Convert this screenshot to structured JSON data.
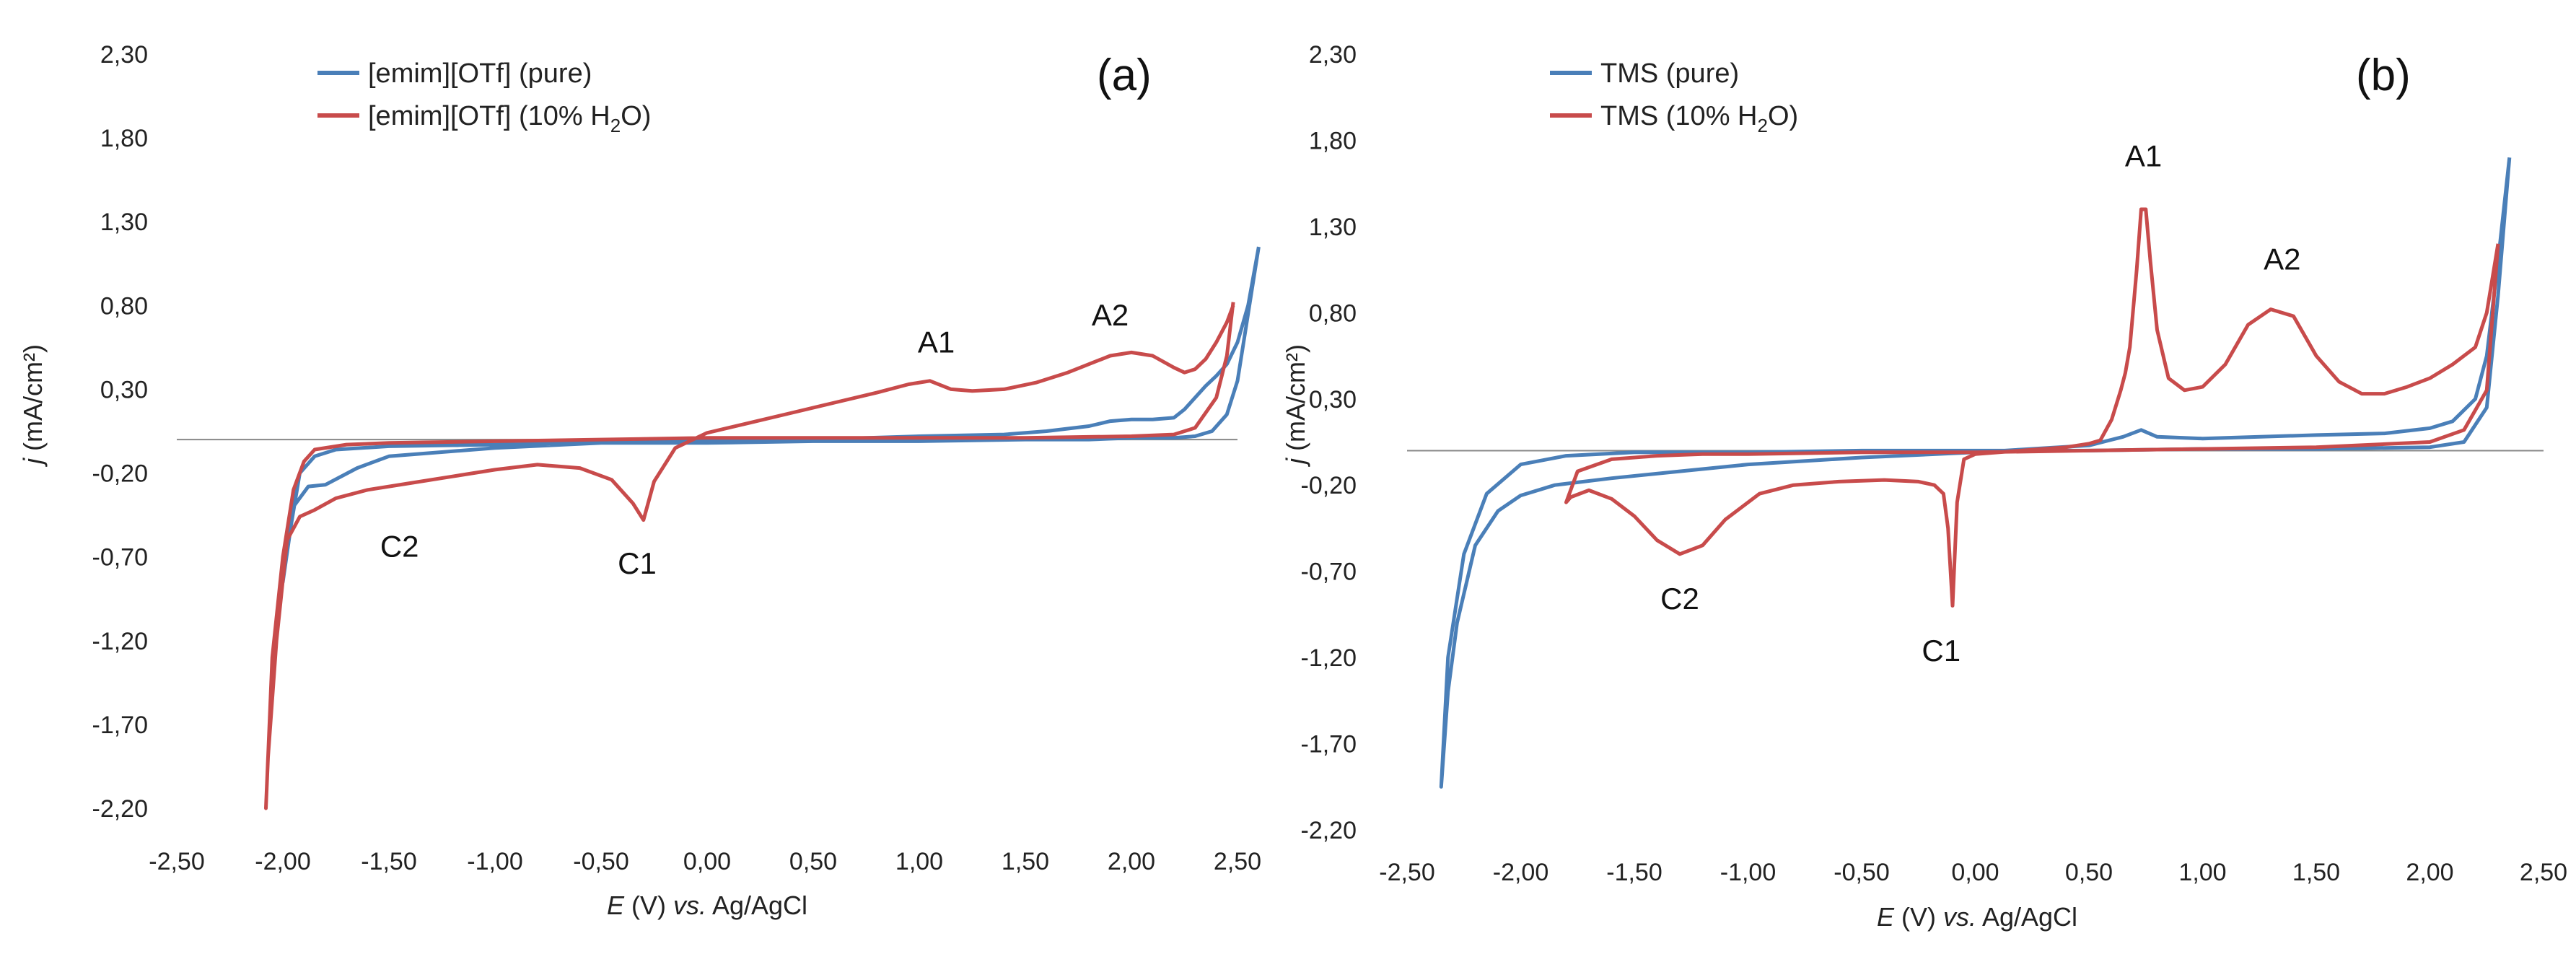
{
  "chart_data": [
    {
      "type": "line",
      "panel_label": "(a)",
      "xlabel_italic": "E",
      "xlabel_mid": " (V) ",
      "xlabel_italic2": "vs.",
      "xlabel_tail": " Ag/AgCl",
      "ylabel_italic": "j",
      "ylabel_tail": " (mA/cm²)",
      "xlim": [
        -2.5,
        2.5
      ],
      "ylim": [
        -2.2,
        2.3
      ],
      "xticks": [
        -2.5,
        -2.0,
        -1.5,
        -1.0,
        -0.5,
        0.0,
        0.5,
        1.0,
        1.5,
        2.0,
        2.5
      ],
      "xtick_labels": [
        "-2,50",
        "-2,00",
        "-1,50",
        "-1,00",
        "-0,50",
        "0,00",
        "0,50",
        "1,00",
        "1,50",
        "2,00",
        "2,50"
      ],
      "yticks": [
        2.3,
        1.8,
        1.3,
        0.8,
        0.3,
        -0.2,
        -0.7,
        -1.2,
        -1.7,
        -2.2
      ],
      "ytick_labels": [
        "2,30",
        "1,80",
        "1,30",
        "0,80",
        "0,30",
        "-0,20",
        "-0,70",
        "-1,20",
        "-1,70",
        "-2,20"
      ],
      "grid": false,
      "legend_position": "top-left",
      "series": [
        {
          "name": "[emim][OTf] (pure)",
          "legend_main": "[emim][OTf] (pure)",
          "legend_sub": "",
          "legend_tail": "",
          "color": "#4a7fb8",
          "x": [
            2.6,
            2.55,
            2.5,
            2.45,
            2.4,
            2.35,
            2.3,
            2.25,
            2.2,
            2.1,
            2.0,
            1.9,
            1.8,
            1.6,
            1.4,
            1.0,
            0.5,
            0.0,
            -0.5,
            -1.0,
            -1.5,
            -1.65,
            -1.8,
            -1.88,
            -1.95,
            -2.0,
            -1.96,
            -1.92,
            -1.85,
            -1.75,
            -1.5,
            -1.0,
            -0.5,
            0.0,
            0.5,
            1.0,
            1.5,
            1.8,
            2.0,
            2.2,
            2.3,
            2.38,
            2.45,
            2.5,
            2.55,
            2.6
          ],
          "y": [
            1.15,
            0.8,
            0.58,
            0.45,
            0.38,
            0.32,
            0.25,
            0.18,
            0.13,
            0.12,
            0.12,
            0.11,
            0.08,
            0.05,
            0.03,
            0.02,
            0.0,
            -0.01,
            -0.02,
            -0.05,
            -0.1,
            -0.17,
            -0.27,
            -0.28,
            -0.4,
            -0.85,
            -0.5,
            -0.2,
            -0.1,
            -0.06,
            -0.04,
            -0.03,
            -0.02,
            -0.02,
            -0.01,
            -0.01,
            0.0,
            0.0,
            0.01,
            0.01,
            0.02,
            0.05,
            0.15,
            0.35,
            0.75,
            1.15
          ]
        },
        {
          "name": "[emim][OTf] (10% H2O)",
          "legend_main": "[emim][OTf] (10% H",
          "legend_sub": "2",
          "legend_tail": "O)",
          "color": "#c84b4b",
          "x": [
            2.48,
            2.45,
            2.4,
            2.35,
            2.3,
            2.25,
            2.2,
            2.1,
            2.0,
            1.9,
            1.8,
            1.7,
            1.55,
            1.4,
            1.25,
            1.15,
            1.05,
            0.95,
            0.8,
            0.6,
            0.4,
            0.2,
            0.0,
            -0.15,
            -0.25,
            -0.3,
            -0.35,
            -0.45,
            -0.6,
            -0.8,
            -1.0,
            -1.2,
            -1.4,
            -1.6,
            -1.75,
            -1.85,
            -1.92,
            -1.98,
            -2.03,
            -2.07,
            -2.08,
            -2.05,
            -2.0,
            -1.95,
            -1.9,
            -1.85,
            -1.7,
            -1.5,
            -1.0,
            -0.5,
            0.0,
            0.5,
            1.0,
            1.5,
            2.0,
            2.2,
            2.3,
            2.4,
            2.45,
            2.48
          ],
          "y": [
            0.8,
            0.7,
            0.58,
            0.48,
            0.42,
            0.4,
            0.43,
            0.5,
            0.52,
            0.5,
            0.45,
            0.4,
            0.34,
            0.3,
            0.29,
            0.3,
            0.35,
            0.33,
            0.28,
            0.22,
            0.16,
            0.1,
            0.04,
            -0.05,
            -0.25,
            -0.48,
            -0.38,
            -0.24,
            -0.17,
            -0.15,
            -0.18,
            -0.22,
            -0.26,
            -0.3,
            -0.35,
            -0.42,
            -0.46,
            -0.6,
            -1.2,
            -1.9,
            -2.2,
            -1.3,
            -0.7,
            -0.3,
            -0.13,
            -0.06,
            -0.03,
            -0.02,
            -0.01,
            0.0,
            0.01,
            0.01,
            0.01,
            0.01,
            0.02,
            0.03,
            0.07,
            0.25,
            0.5,
            0.82
          ]
        }
      ],
      "annotations": [
        {
          "text": "A1",
          "x": 1.08,
          "y": 0.52
        },
        {
          "text": "A2",
          "x": 1.9,
          "y": 0.68
        },
        {
          "text": "C1",
          "x": -0.33,
          "y": -0.8
        },
        {
          "text": "C2",
          "x": -1.45,
          "y": -0.7
        }
      ]
    },
    {
      "type": "line",
      "panel_label": "(b)",
      "xlabel_italic": "E",
      "xlabel_mid": " (V) ",
      "xlabel_italic2": "vs.",
      "xlabel_tail": " Ag/AgCl",
      "ylabel_italic": "j",
      "ylabel_tail": " (mA/cm²)",
      "xlim": [
        -2.5,
        2.5
      ],
      "ylim": [
        -2.2,
        2.3
      ],
      "xticks": [
        -2.5,
        -2.0,
        -1.5,
        -1.0,
        -0.5,
        0.0,
        0.5,
        1.0,
        1.5,
        2.0,
        2.5
      ],
      "xtick_labels": [
        "-2,50",
        "-2,00",
        "-1,50",
        "-1,00",
        "-0,50",
        "0,00",
        "0,50",
        "1,00",
        "1,50",
        "2,00",
        "2,50"
      ],
      "yticks": [
        2.3,
        1.8,
        1.3,
        0.8,
        0.3,
        -0.2,
        -0.7,
        -1.2,
        -1.7,
        -2.2
      ],
      "ytick_labels": [
        "2,30",
        "1,80",
        "1,30",
        "0,80",
        "0,30",
        "-0,20",
        "-0,70",
        "-1,20",
        "-1,70",
        "-2,20"
      ],
      "grid": false,
      "legend_position": "top-left",
      "series": [
        {
          "name": "TMS (pure)",
          "legend_main": "TMS (pure)",
          "legend_sub": "",
          "legend_tail": "",
          "color": "#4a7fb8",
          "x": [
            2.35,
            2.3,
            2.25,
            2.2,
            2.1,
            2.0,
            1.8,
            1.5,
            1.0,
            0.8,
            0.73,
            0.65,
            0.5,
            0.0,
            -0.5,
            -1.0,
            -1.3,
            -1.6,
            -1.85,
            -2.0,
            -2.1,
            -2.2,
            -2.28,
            -2.32,
            -2.35,
            -2.32,
            -2.25,
            -2.15,
            -2.0,
            -1.8,
            -1.5,
            -1.0,
            -0.5,
            0.0,
            0.5,
            1.0,
            1.5,
            2.0,
            2.15,
            2.25,
            2.3,
            2.35
          ],
          "y": [
            1.7,
            1.1,
            0.55,
            0.3,
            0.17,
            0.13,
            0.1,
            0.09,
            0.07,
            0.08,
            0.12,
            0.08,
            0.03,
            -0.01,
            -0.04,
            -0.08,
            -0.12,
            -0.16,
            -0.2,
            -0.26,
            -0.35,
            -0.55,
            -1.0,
            -1.4,
            -1.95,
            -1.2,
            -0.6,
            -0.25,
            -0.08,
            -0.03,
            -0.01,
            -0.01,
            0.0,
            0.0,
            0.0,
            0.01,
            0.01,
            0.02,
            0.05,
            0.25,
            0.9,
            1.7
          ]
        },
        {
          "name": "TMS (10% H2O)",
          "legend_main": "TMS (10% H",
          "legend_sub": "2",
          "legend_tail": "O)",
          "color": "#c84b4b",
          "x": [
            2.3,
            2.25,
            2.2,
            2.1,
            2.0,
            1.9,
            1.8,
            1.7,
            1.6,
            1.5,
            1.4,
            1.3,
            1.2,
            1.1,
            1.0,
            0.92,
            0.85,
            0.8,
            0.77,
            0.75,
            0.73,
            0.71,
            0.68,
            0.66,
            0.64,
            0.6,
            0.55,
            0.5,
            0.4,
            0.2,
            0.0,
            -0.05,
            -0.08,
            -0.1,
            -0.12,
            -0.14,
            -0.18,
            -0.25,
            -0.4,
            -0.6,
            -0.8,
            -0.95,
            -1.1,
            -1.2,
            -1.3,
            -1.4,
            -1.5,
            -1.6,
            -1.7,
            -1.78,
            -1.8,
            -1.75,
            -1.6,
            -1.4,
            -1.2,
            -1.0,
            -0.5,
            0.0,
            0.5,
            1.0,
            1.5,
            2.0,
            2.15,
            2.25,
            2.3
          ],
          "y": [
            1.2,
            0.8,
            0.6,
            0.5,
            0.42,
            0.37,
            0.33,
            0.33,
            0.4,
            0.55,
            0.78,
            0.82,
            0.73,
            0.5,
            0.37,
            0.35,
            0.42,
            0.7,
            1.1,
            1.4,
            1.4,
            1.05,
            0.6,
            0.45,
            0.35,
            0.18,
            0.06,
            0.04,
            0.02,
            0.0,
            -0.02,
            -0.05,
            -0.3,
            -0.9,
            -0.45,
            -0.25,
            -0.2,
            -0.18,
            -0.17,
            -0.18,
            -0.2,
            -0.25,
            -0.4,
            -0.55,
            -0.6,
            -0.52,
            -0.38,
            -0.28,
            -0.23,
            -0.27,
            -0.3,
            -0.12,
            -0.05,
            -0.03,
            -0.02,
            -0.02,
            -0.01,
            -0.01,
            0.0,
            0.01,
            0.02,
            0.05,
            0.12,
            0.35,
            1.2
          ]
        }
      ],
      "annotations": [
        {
          "text": "A1",
          "x": 0.74,
          "y": 1.65
        },
        {
          "text": "A2",
          "x": 1.35,
          "y": 1.05
        },
        {
          "text": "C1",
          "x": -0.15,
          "y": -1.22
        },
        {
          "text": "C2",
          "x": -1.3,
          "y": -0.92
        }
      ]
    }
  ]
}
